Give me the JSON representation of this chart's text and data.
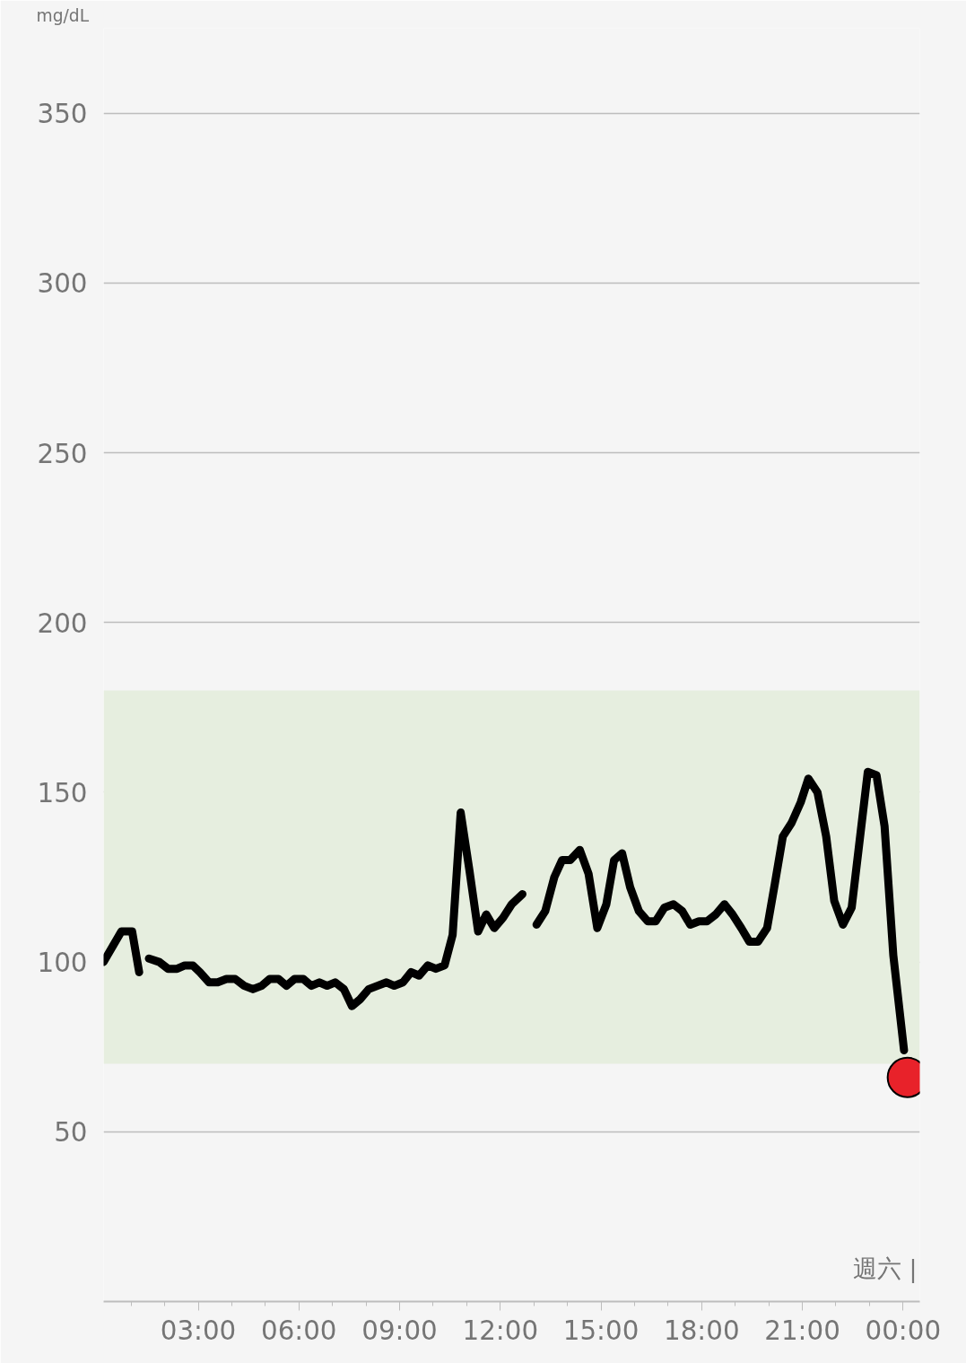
{
  "chart_data": {
    "type": "line",
    "ylabel": "mg/dL",
    "x": [
      0.18,
      0.71,
      1.03,
      1.24,
      1.38,
      1.53,
      1.84,
      2.1,
      2.37,
      2.6,
      2.84,
      3.05,
      3.32,
      3.58,
      3.84,
      4.1,
      4.37,
      4.63,
      4.89,
      5.13,
      5.39,
      5.63,
      5.87,
      6.13,
      6.37,
      6.61,
      6.84,
      7.08,
      7.34,
      7.58,
      7.82,
      8.08,
      8.34,
      8.61,
      8.84,
      9.1,
      9.34,
      9.58,
      9.84,
      10.08,
      10.34,
      10.58,
      10.82,
      11.08,
      11.34,
      11.58,
      11.82,
      12.08,
      12.34,
      12.66,
      12.9,
      13.08,
      13.34,
      13.61,
      13.84,
      14.08,
      14.37,
      14.63,
      14.89,
      15.16,
      15.39,
      15.63,
      15.87,
      16.13,
      16.39,
      16.63,
      16.89,
      17.16,
      17.42,
      17.66,
      17.92,
      18.16,
      18.42,
      18.68,
      18.92,
      19.18,
      19.42,
      19.68,
      19.95,
      20.18,
      20.42,
      20.68,
      20.95,
      21.18,
      21.45,
      21.71,
      21.95,
      22.21,
      22.47,
      22.71,
      22.95,
      23.21,
      23.45,
      23.71,
      24.03
    ],
    "series": [
      {
        "color": "#000000",
        "values": [
          100,
          109,
          109,
          97,
          null,
          101,
          100,
          98,
          98,
          99,
          99,
          97,
          94,
          94,
          95,
          95,
          93,
          92,
          93,
          95,
          95,
          93,
          95,
          95,
          93,
          94,
          93,
          94,
          92,
          87,
          89,
          92,
          93,
          94,
          93,
          94,
          97,
          96,
          99,
          98,
          99,
          108,
          144,
          127,
          109,
          114,
          110,
          113,
          117,
          120,
          null,
          111,
          115,
          125,
          130,
          130,
          133,
          126,
          110,
          117,
          130,
          132,
          122,
          115,
          112,
          112,
          116,
          117,
          115,
          111,
          112,
          112,
          114,
          117,
          114,
          110,
          106,
          106,
          110,
          123,
          137,
          141,
          147,
          154,
          150,
          137,
          118,
          111,
          116,
          136,
          156,
          155,
          140,
          102,
          74
        ]
      },
      {
        "type": "scatter",
        "marker": "circle",
        "color": "#e8222a",
        "x": [
          24.13
        ],
        "values": [
          66
        ]
      }
    ],
    "xlim": [
      0.18,
      24.5
    ],
    "ylim": [
      0,
      375
    ],
    "xticks": [
      {
        "value": 1,
        "label": null
      },
      {
        "value": 2,
        "label": null
      },
      {
        "value": 3,
        "label": "03:00"
      },
      {
        "value": 4,
        "label": null
      },
      {
        "value": 5,
        "label": null
      },
      {
        "value": 6,
        "label": "06:00"
      },
      {
        "value": 7,
        "label": null
      },
      {
        "value": 8,
        "label": null
      },
      {
        "value": 9,
        "label": "09:00"
      },
      {
        "value": 10,
        "label": null
      },
      {
        "value": 11,
        "label": null
      },
      {
        "value": 12,
        "label": "12:00"
      },
      {
        "value": 13,
        "label": null
      },
      {
        "value": 14,
        "label": null
      },
      {
        "value": 15,
        "label": "15:00"
      },
      {
        "value": 16,
        "label": null
      },
      {
        "value": 17,
        "label": null
      },
      {
        "value": 18,
        "label": "18:00"
      },
      {
        "value": 19,
        "label": null
      },
      {
        "value": 20,
        "label": null
      },
      {
        "value": 21,
        "label": "21:00"
      },
      {
        "value": 22,
        "label": null
      },
      {
        "value": 23,
        "label": null
      },
      {
        "value": 24,
        "label": "00:00"
      }
    ],
    "yticks": [
      50,
      100,
      150,
      200,
      250,
      300,
      350
    ],
    "bands": [
      {
        "axis": "y",
        "from": 70,
        "to": 180,
        "color": "#e6eedf"
      }
    ],
    "annotations": [
      "週六 |"
    ],
    "grid": "y",
    "line_style": "solid"
  }
}
